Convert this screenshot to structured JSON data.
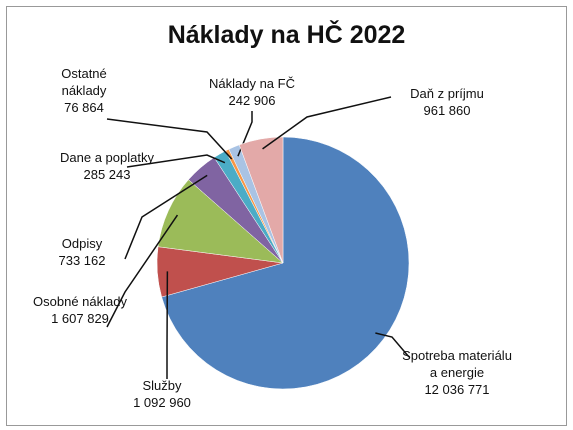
{
  "chart_data": {
    "type": "pie",
    "title": "Náklady na HČ 2022",
    "categories": [
      "Spotreba materiálu a energie",
      "Služby",
      "Osobné náklady",
      "Odpisy",
      "Dane a poplatky",
      "Ostatné náklady",
      "Náklady na FČ",
      "Daň z príjmu"
    ],
    "values": [
      12036771,
      1092960,
      1607829,
      733162,
      285243,
      76864,
      242906,
      961860
    ],
    "value_labels": [
      "12 036 771",
      "1 092 960",
      "1 607 829",
      "733 162",
      "285 243",
      "76 864",
      "242 906",
      "961 860"
    ],
    "colors": [
      "#4f81bd",
      "#c0504d",
      "#9bbb59",
      "#8064a2",
      "#4bacc6",
      "#f79646",
      "#a9c3e4",
      "#e3a9a8"
    ]
  }
}
